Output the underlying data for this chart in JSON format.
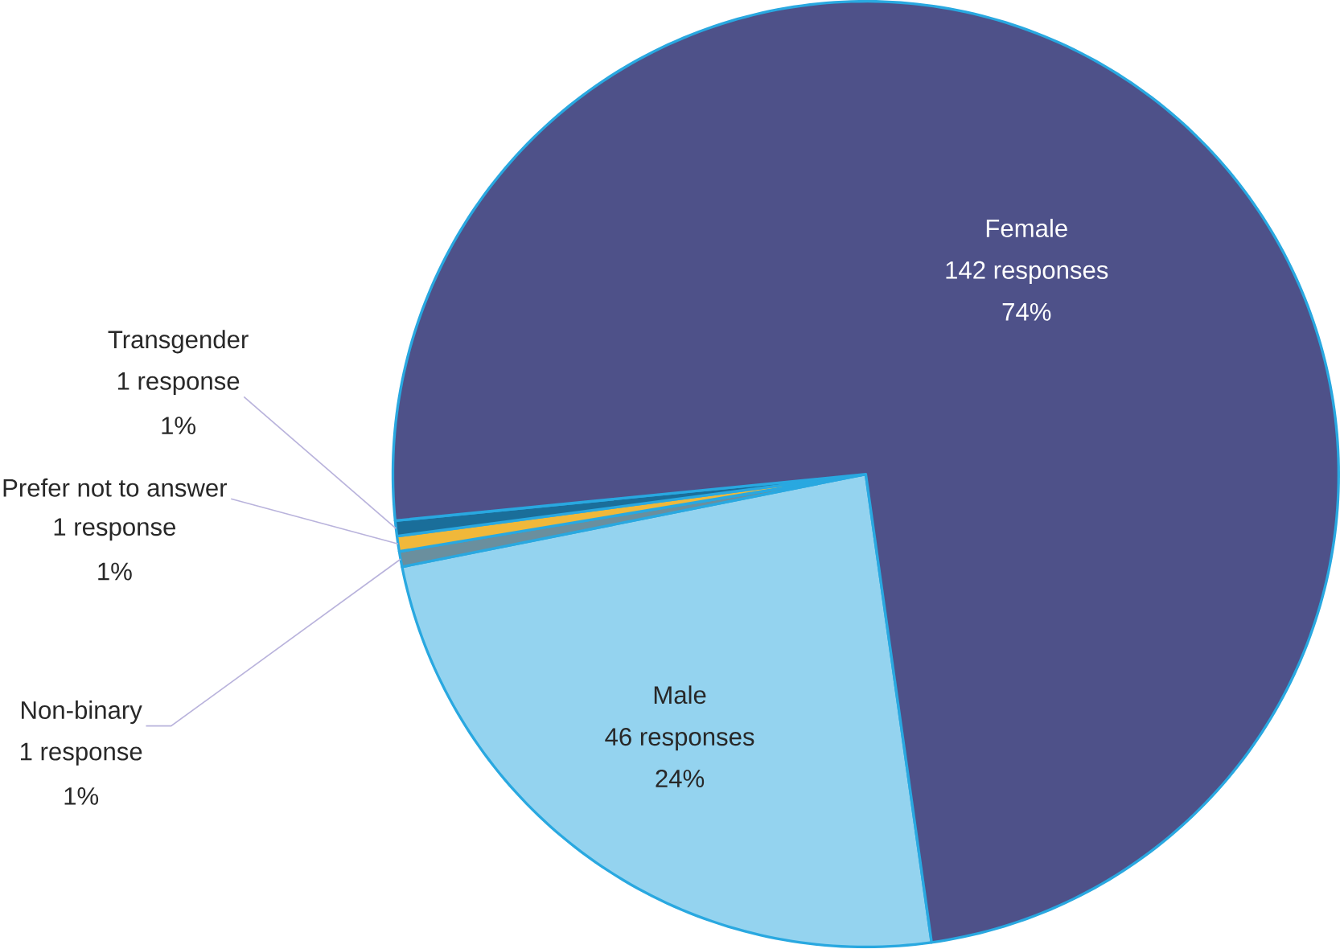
{
  "chart_data": {
    "type": "pie",
    "categories": [
      "Male",
      "Non-binary",
      "Prefer not to answer",
      "Transgender",
      "Female"
    ],
    "values": [
      46,
      1,
      1,
      1,
      142
    ],
    "colors": [
      "#94d3ef",
      "#6a8f9e",
      "#f0b83a",
      "#1a6e9a",
      "#4e5189"
    ],
    "value_labels": [
      "46 responses",
      "1 response",
      "1 response",
      "1 response",
      "142 responses"
    ],
    "annotations": [
      "24%",
      "1%",
      "1%",
      "1%",
      "74%"
    ]
  }
}
